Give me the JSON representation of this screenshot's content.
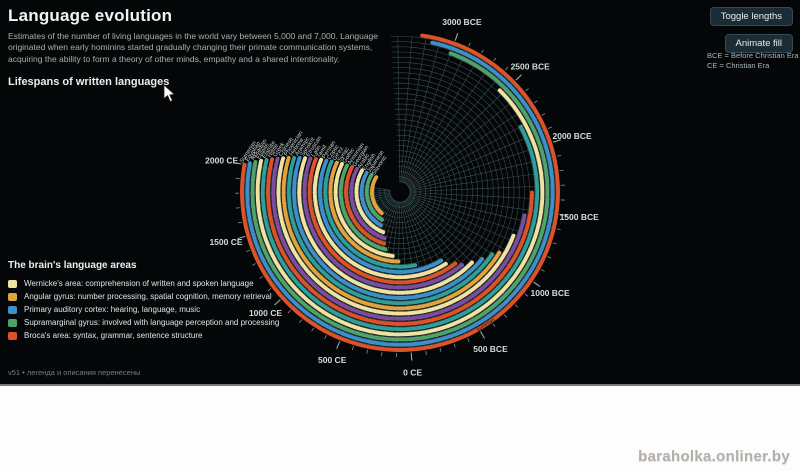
{
  "header": {
    "title": "Language evolution",
    "description": "Estimates of the number of living languages in the world vary between 5,000 and 7,000. Language originated when early hominins started gradually changing their primate communication systems, acquiring the ability to form a theory of other minds, empathy and a shared intentionality.",
    "subtitle": "Lifespans of written languages"
  },
  "controls": {
    "toggle_lengths_label": "Toggle lengths",
    "animate_fill_label": "Animate fill"
  },
  "abbreviations": {
    "line1": "BCE = Before Christian Era",
    "line2": "CE = Christian Era"
  },
  "legend": {
    "title": "The brain's language areas",
    "items": [
      {
        "label": "Wernicke's area: comprehension of written and spoken language",
        "color": "#f0e3a2"
      },
      {
        "label": "Angular gyrus: number processing, spatial cognition, memory retrieval",
        "color": "#e2a23e"
      },
      {
        "label": "Primary auditory cortex: hearing, language, music",
        "color": "#3d8ec9"
      },
      {
        "label": "Supramarginal gyrus: involved with language perception and processing",
        "color": "#4fa36a"
      },
      {
        "label": "Broca's area: syntax, grammar, sentence structure",
        "color": "#dd5226"
      }
    ]
  },
  "footnote": "v51 • легенда и описания перенесены",
  "watermark": "baraholka.onliner.by",
  "chart_data": {
    "type": "radial-timeline",
    "title": "Lifespans of written languages",
    "era_labels": [
      {
        "label": "3000 BCE",
        "year": -3000
      },
      {
        "label": "2500 BCE",
        "year": -2500
      },
      {
        "label": "2000 BCE",
        "year": -2000
      },
      {
        "label": "1500 BCE",
        "year": -1500
      },
      {
        "label": "1000 BCE",
        "year": -1000
      },
      {
        "label": "500 BCE",
        "year": -500
      },
      {
        "label": "0 CE",
        "year": 0
      },
      {
        "label": "500 CE",
        "year": 500
      },
      {
        "label": "1000 CE",
        "year": 1000
      },
      {
        "label": "1500 CE",
        "year": 1500
      },
      {
        "label": "2000 CE",
        "year": 2000
      }
    ],
    "palette": {
      "cream": "#f0e3a2",
      "orange": "#e2a23e",
      "blue": "#3d8ec9",
      "green": "#4fa36a",
      "red": "#dd5226",
      "purple": "#7c4d9e",
      "teal": "#2f9e99"
    },
    "languages": [
      {
        "name": "Sumerian",
        "start": -3230,
        "end": 2000,
        "color": "red"
      },
      {
        "name": "Egyptian",
        "start": -3150,
        "end": 2000,
        "color": "blue"
      },
      {
        "name": "Akkadian",
        "start": -3000,
        "end": 2000,
        "color": "green"
      },
      {
        "name": "Eblaite",
        "start": -2530,
        "end": 2000,
        "color": "cream"
      },
      {
        "name": "Elamite",
        "start": -2200,
        "end": 2000,
        "color": "teal"
      },
      {
        "name": "Hittite",
        "start": -1650,
        "end": 2000,
        "color": "red"
      },
      {
        "name": "Greek",
        "start": -1450,
        "end": 2000,
        "color": "purple"
      },
      {
        "name": "Chinese",
        "start": -1250,
        "end": 2000,
        "color": "cream"
      },
      {
        "name": "Phoenician",
        "start": -1050,
        "end": 2000,
        "color": "orange"
      },
      {
        "name": "Hebrew",
        "start": -1000,
        "end": 2000,
        "color": "teal"
      },
      {
        "name": "Aramaic",
        "start": -900,
        "end": 2000,
        "color": "blue"
      },
      {
        "name": "Sanskrit",
        "start": -800,
        "end": 2000,
        "color": "cream"
      },
      {
        "name": "Etruscan",
        "start": -700,
        "end": 2000,
        "color": "purple"
      },
      {
        "name": "Latin",
        "start": -650,
        "end": 2000,
        "color": "red"
      },
      {
        "name": "Tamil",
        "start": -550,
        "end": 2000,
        "color": "cream"
      },
      {
        "name": "Persian",
        "start": -520,
        "end": 2000,
        "color": "blue"
      },
      {
        "name": "Coptic",
        "start": -150,
        "end": 2000,
        "color": "teal"
      },
      {
        "name": "Ge'ez",
        "start": 100,
        "end": 2000,
        "color": "orange"
      },
      {
        "name": "Syriac",
        "start": 200,
        "end": 2000,
        "color": "cream"
      },
      {
        "name": "Gothic",
        "start": 350,
        "end": 2000,
        "color": "green"
      },
      {
        "name": "Armenian",
        "start": 405,
        "end": 2000,
        "color": "red"
      },
      {
        "name": "Georgian",
        "start": 430,
        "end": 2000,
        "color": "purple"
      },
      {
        "name": "Arabic",
        "start": 512,
        "end": 2000,
        "color": "cream"
      },
      {
        "name": "English",
        "start": 650,
        "end": 2000,
        "color": "blue"
      },
      {
        "name": "Japanese",
        "start": 710,
        "end": 2000,
        "color": "green"
      },
      {
        "name": "Slavonic",
        "start": 860,
        "end": 2000,
        "color": "orange"
      }
    ],
    "on_arc_label": {
      "text": "Sumerian",
      "arc_index": 0,
      "year": -560
    },
    "layout": {
      "center": [
        400,
        192
      ],
      "outer_radius": 158,
      "ring_pitch": 5.2,
      "arc_width": 3.9,
      "angle_start_deg": 20,
      "deg_per_year": 0.052,
      "time_domain": [
        -3450,
        2000
      ],
      "grid": true,
      "grid_color": "#4a6a70"
    }
  }
}
